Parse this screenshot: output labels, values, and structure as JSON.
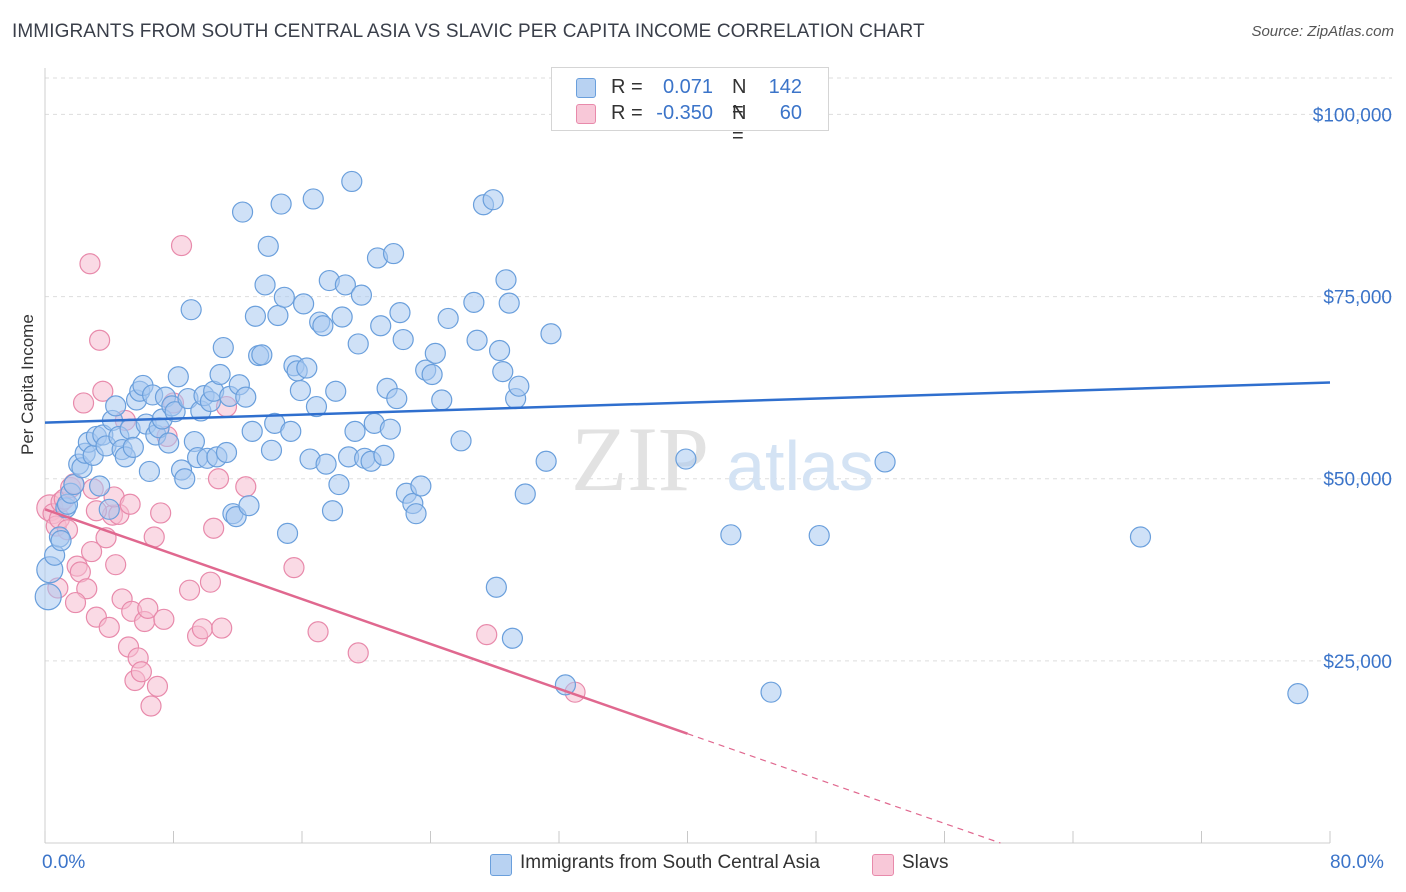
{
  "header": {
    "title": "IMMIGRANTS FROM SOUTH CENTRAL ASIA VS SLAVIC PER CAPITA INCOME CORRELATION CHART",
    "source": "Source: ZipAtlas.com"
  },
  "watermark": {
    "zip": "ZIP",
    "atlas": "atlas"
  },
  "legend": {
    "rows": [
      {
        "r_label": "R =",
        "r_value": "0.071",
        "n_label": "N =",
        "n_value": "142"
      },
      {
        "r_label": "R =",
        "r_value": "-0.350",
        "n_label": "N =",
        "n_value": "60"
      }
    ]
  },
  "colors": {
    "blue_fill": "#a8c8f0",
    "blue_stroke": "#6a9fdc",
    "blue_line": "#2f6fce",
    "pink_fill": "#f6bcd0",
    "pink_stroke": "#e88aab",
    "pink_line": "#e0688f",
    "tick_text": "#3b74c9",
    "grid": "#dddddd"
  },
  "chart_data": {
    "type": "scatter",
    "title": "IMMIGRANTS FROM SOUTH CENTRAL ASIA VS SLAVIC PER CAPITA INCOME CORRELATION CHART",
    "xlabel": "",
    "ylabel": "Per Capita Income",
    "xlim": [
      0,
      80
    ],
    "ylim": [
      0,
      105000
    ],
    "x_tick_labels": [
      "0.0%",
      "80.0%"
    ],
    "y_ticks": [
      25000,
      50000,
      75000,
      100000
    ],
    "y_tick_labels": [
      "$25,000",
      "$50,000",
      "$75,000",
      "$100,000"
    ],
    "grid": true,
    "legend_position": "top-center",
    "series": [
      {
        "name": "Immigrants from South Central Asia",
        "color": "#a8c8f0",
        "trend": {
          "x": [
            0,
            80
          ],
          "y": [
            57700,
            63200
          ],
          "style": "solid"
        },
        "points": [
          [
            0.2,
            33800
          ],
          [
            0.3,
            37500
          ],
          [
            0.6,
            39500
          ],
          [
            0.9,
            42000
          ],
          [
            1.0,
            41500
          ],
          [
            1.3,
            46000
          ],
          [
            1.4,
            46500
          ],
          [
            1.6,
            48000
          ],
          [
            1.8,
            49200
          ],
          [
            2.1,
            52000
          ],
          [
            2.3,
            51500
          ],
          [
            2.5,
            53500
          ],
          [
            2.7,
            55000
          ],
          [
            3.0,
            53200
          ],
          [
            3.2,
            55800
          ],
          [
            3.4,
            49000
          ],
          [
            3.6,
            56000
          ],
          [
            3.8,
            54500
          ],
          [
            4.0,
            45800
          ],
          [
            4.2,
            58000
          ],
          [
            4.4,
            60000
          ],
          [
            4.6,
            55800
          ],
          [
            4.8,
            54000
          ],
          [
            5.0,
            53000
          ],
          [
            5.3,
            56800
          ],
          [
            5.5,
            54300
          ],
          [
            5.7,
            60800
          ],
          [
            5.9,
            62000
          ],
          [
            6.1,
            62800
          ],
          [
            6.3,
            57500
          ],
          [
            6.5,
            51000
          ],
          [
            6.7,
            61500
          ],
          [
            6.9,
            56000
          ],
          [
            7.1,
            57000
          ],
          [
            7.3,
            58200
          ],
          [
            7.5,
            61200
          ],
          [
            7.7,
            54900
          ],
          [
            7.9,
            60000
          ],
          [
            8.1,
            59200
          ],
          [
            8.3,
            64000
          ],
          [
            8.5,
            51200
          ],
          [
            8.7,
            50000
          ],
          [
            8.9,
            61000
          ],
          [
            9.1,
            73200
          ],
          [
            9.3,
            55100
          ],
          [
            9.5,
            52900
          ],
          [
            9.7,
            59300
          ],
          [
            9.9,
            61400
          ],
          [
            10.1,
            52800
          ],
          [
            10.3,
            60600
          ],
          [
            10.5,
            62000
          ],
          [
            10.7,
            53000
          ],
          [
            10.9,
            64300
          ],
          [
            11.1,
            68000
          ],
          [
            11.3,
            53600
          ],
          [
            11.5,
            61300
          ],
          [
            11.7,
            45200
          ],
          [
            11.9,
            44800
          ],
          [
            12.1,
            62900
          ],
          [
            12.3,
            86600
          ],
          [
            12.5,
            61200
          ],
          [
            12.7,
            46300
          ],
          [
            12.9,
            56500
          ],
          [
            13.1,
            72300
          ],
          [
            13.3,
            66900
          ],
          [
            13.5,
            67000
          ],
          [
            13.7,
            76600
          ],
          [
            13.9,
            81900
          ],
          [
            14.1,
            53900
          ],
          [
            14.3,
            57600
          ],
          [
            14.5,
            72400
          ],
          [
            14.7,
            87700
          ],
          [
            14.9,
            74900
          ],
          [
            15.1,
            42500
          ],
          [
            15.3,
            56500
          ],
          [
            15.5,
            65500
          ],
          [
            15.7,
            64800
          ],
          [
            15.9,
            62100
          ],
          [
            16.1,
            74000
          ],
          [
            16.3,
            65200
          ],
          [
            16.5,
            52700
          ],
          [
            16.7,
            88400
          ],
          [
            16.9,
            59900
          ],
          [
            17.1,
            71500
          ],
          [
            17.3,
            71000
          ],
          [
            17.5,
            52000
          ],
          [
            17.7,
            77200
          ],
          [
            17.9,
            45600
          ],
          [
            18.1,
            62000
          ],
          [
            18.3,
            49200
          ],
          [
            18.5,
            72200
          ],
          [
            18.7,
            76600
          ],
          [
            18.9,
            53000
          ],
          [
            19.1,
            90800
          ],
          [
            19.3,
            56500
          ],
          [
            19.5,
            68500
          ],
          [
            19.7,
            75200
          ],
          [
            19.9,
            52800
          ],
          [
            20.3,
            52400
          ],
          [
            20.5,
            57600
          ],
          [
            20.7,
            80300
          ],
          [
            20.9,
            71000
          ],
          [
            21.1,
            53200
          ],
          [
            21.3,
            62400
          ],
          [
            21.5,
            56800
          ],
          [
            21.7,
            80900
          ],
          [
            21.9,
            61000
          ],
          [
            22.1,
            72800
          ],
          [
            22.3,
            69100
          ],
          [
            22.5,
            48000
          ],
          [
            22.9,
            46600
          ],
          [
            23.1,
            45200
          ],
          [
            23.4,
            49000
          ],
          [
            23.7,
            64900
          ],
          [
            24.1,
            64300
          ],
          [
            24.3,
            67200
          ],
          [
            24.7,
            60800
          ],
          [
            25.1,
            72000
          ],
          [
            25.9,
            55200
          ],
          [
            26.7,
            74200
          ],
          [
            26.9,
            69000
          ],
          [
            27.3,
            87600
          ],
          [
            27.9,
            88300
          ],
          [
            28.1,
            35100
          ],
          [
            28.3,
            67600
          ],
          [
            28.5,
            64700
          ],
          [
            28.7,
            77300
          ],
          [
            28.9,
            74100
          ],
          [
            29.1,
            28100
          ],
          [
            29.3,
            61000
          ],
          [
            29.5,
            62700
          ],
          [
            29.9,
            47900
          ],
          [
            31.2,
            52400
          ],
          [
            31.5,
            69900
          ],
          [
            32.4,
            21700
          ],
          [
            39.9,
            52700
          ],
          [
            42.7,
            42300
          ],
          [
            45.2,
            20700
          ],
          [
            48.2,
            42200
          ],
          [
            68.2,
            42000
          ],
          [
            78.0,
            20500
          ],
          [
            52.3,
            52300
          ]
        ]
      },
      {
        "name": "Slavs",
        "color": "#f6bcd0",
        "trend": {
          "x": [
            0,
            40
          ],
          "y": [
            45800,
            15000
          ],
          "style": "solid",
          "extend_dashed_to_x": 80
        },
        "points": [
          [
            0.3,
            46000
          ],
          [
            0.5,
            45200
          ],
          [
            0.7,
            43500
          ],
          [
            0.9,
            44500
          ],
          [
            1.0,
            46800
          ],
          [
            1.2,
            47200
          ],
          [
            1.4,
            43000
          ],
          [
            1.6,
            48800
          ],
          [
            1.8,
            49300
          ],
          [
            2.0,
            38000
          ],
          [
            2.2,
            37200
          ],
          [
            2.4,
            60400
          ],
          [
            2.6,
            34900
          ],
          [
            2.8,
            79500
          ],
          [
            3.0,
            48600
          ],
          [
            3.2,
            31000
          ],
          [
            3.4,
            69000
          ],
          [
            3.6,
            62000
          ],
          [
            3.8,
            41900
          ],
          [
            4.0,
            29600
          ],
          [
            4.2,
            45000
          ],
          [
            4.4,
            38200
          ],
          [
            4.6,
            45100
          ],
          [
            4.8,
            33500
          ],
          [
            5.0,
            58000
          ],
          [
            5.2,
            26900
          ],
          [
            5.4,
            31800
          ],
          [
            5.6,
            22300
          ],
          [
            5.8,
            25400
          ],
          [
            6.0,
            23500
          ],
          [
            6.2,
            30400
          ],
          [
            6.4,
            32200
          ],
          [
            6.6,
            18800
          ],
          [
            6.8,
            42000
          ],
          [
            7.0,
            21500
          ],
          [
            7.2,
            45300
          ],
          [
            7.4,
            30700
          ],
          [
            7.6,
            55800
          ],
          [
            8.0,
            60400
          ],
          [
            8.5,
            82000
          ],
          [
            9.0,
            34700
          ],
          [
            9.5,
            28400
          ],
          [
            9.8,
            29400
          ],
          [
            10.3,
            35800
          ],
          [
            10.5,
            43200
          ],
          [
            10.8,
            50000
          ],
          [
            11.0,
            29500
          ],
          [
            11.3,
            59900
          ],
          [
            12.5,
            48900
          ],
          [
            15.5,
            37800
          ],
          [
            17.0,
            29000
          ],
          [
            19.5,
            26100
          ],
          [
            27.5,
            28600
          ],
          [
            33.0,
            20700
          ],
          [
            3.2,
            45600
          ],
          [
            4.3,
            47500
          ],
          [
            5.3,
            46500
          ],
          [
            0.8,
            35000
          ],
          [
            1.9,
            33000
          ],
          [
            2.9,
            40000
          ]
        ]
      }
    ]
  },
  "bottom_legend": {
    "items": [
      {
        "label": "Immigrants from South Central Asia"
      },
      {
        "label": "Slavs"
      }
    ]
  },
  "axes": {
    "x_left": "0.0%",
    "x_right": "80.0%",
    "y_title": "Per Capita Income"
  }
}
